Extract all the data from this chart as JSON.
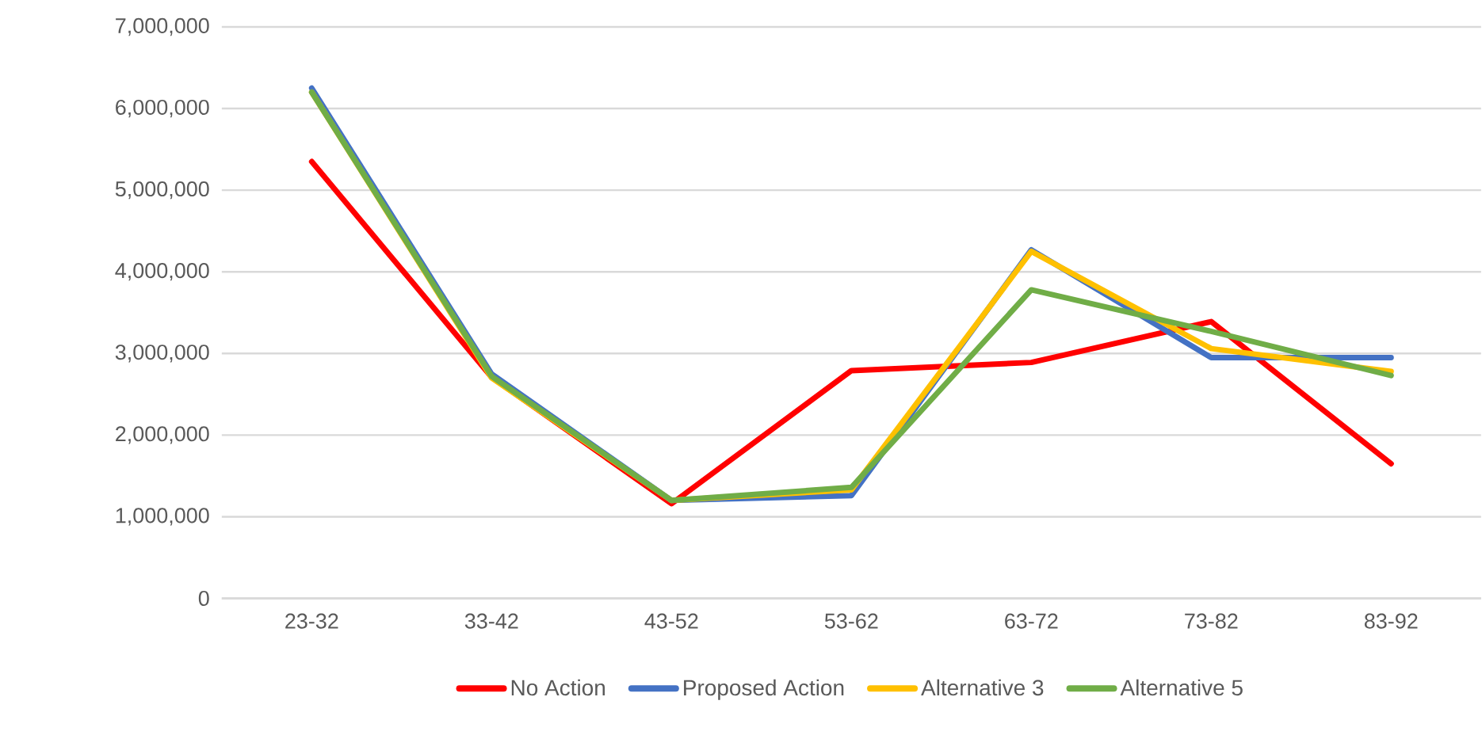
{
  "chart_data": {
    "type": "line",
    "categories": [
      "23-32",
      "33-42",
      "43-52",
      "53-62",
      "63-72",
      "73-82",
      "83-92"
    ],
    "series": [
      {
        "name": "No Action",
        "color": "#ff0000",
        "values": [
          5350000,
          2710000,
          1160000,
          2790000,
          2890000,
          3390000,
          1650000
        ]
      },
      {
        "name": "Proposed Action",
        "color": "#4472c4",
        "values": [
          6250000,
          2750000,
          1200000,
          1260000,
          4270000,
          2950000,
          2950000
        ]
      },
      {
        "name": "Alternative 3",
        "color": "#ffc000",
        "values": [
          6200000,
          2700000,
          1200000,
          1330000,
          4250000,
          3060000,
          2780000
        ]
      },
      {
        "name": "Alternative 5",
        "color": "#70ad47",
        "values": [
          6200000,
          2720000,
          1200000,
          1360000,
          3780000,
          3270000,
          2730000
        ]
      }
    ],
    "ylim": [
      0,
      7000000
    ],
    "yticks": [
      {
        "value": 0,
        "label": "0"
      },
      {
        "value": 1000000,
        "label": "1,000,000"
      },
      {
        "value": 2000000,
        "label": "2,000,000"
      },
      {
        "value": 3000000,
        "label": "3,000,000"
      },
      {
        "value": 4000000,
        "label": "4,000,000"
      },
      {
        "value": 5000000,
        "label": "5,000,000"
      },
      {
        "value": 6000000,
        "label": "6,000,000"
      },
      {
        "value": 7000000,
        "label": "7,000,000"
      }
    ],
    "grid": "y",
    "legend": "bottom",
    "marker": "none",
    "line_style": "solid"
  }
}
